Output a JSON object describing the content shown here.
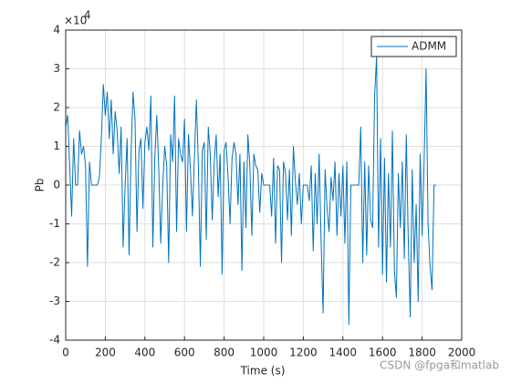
{
  "chart_data": {
    "type": "line",
    "xlabel": "Time (s)",
    "ylabel": "Pb",
    "y_multiplier_base": "×10",
    "y_multiplier_exponent": "4",
    "watermark": "CSDN @fpga和matlab",
    "xlim": [
      0,
      2000
    ],
    "xticks": [
      0,
      200,
      400,
      600,
      800,
      1000,
      1200,
      1400,
      1600,
      1800,
      2000
    ],
    "ylim": [
      -4,
      4
    ],
    "yticks": [
      -4,
      -3,
      -2,
      -1,
      0,
      1,
      2,
      3,
      4
    ],
    "grid": true,
    "legend": "northeast",
    "x": [
      0,
      10,
      20,
      30,
      40,
      50,
      60,
      70,
      80,
      90,
      100,
      110,
      120,
      130,
      140,
      150,
      160,
      170,
      180,
      190,
      200,
      210,
      220,
      230,
      240,
      250,
      260,
      270,
      280,
      290,
      300,
      310,
      320,
      330,
      340,
      350,
      360,
      370,
      380,
      390,
      400,
      410,
      420,
      430,
      440,
      450,
      460,
      470,
      480,
      490,
      500,
      510,
      520,
      530,
      540,
      550,
      560,
      570,
      580,
      590,
      600,
      610,
      620,
      630,
      640,
      650,
      660,
      670,
      680,
      690,
      700,
      710,
      720,
      730,
      740,
      750,
      760,
      770,
      780,
      790,
      800,
      810,
      820,
      830,
      840,
      850,
      860,
      870,
      880,
      890,
      900,
      910,
      920,
      930,
      940,
      950,
      960,
      970,
      980,
      990,
      1000,
      1010,
      1020,
      1030,
      1040,
      1050,
      1060,
      1070,
      1080,
      1090,
      1100,
      1110,
      1120,
      1130,
      1140,
      1150,
      1160,
      1170,
      1180,
      1190,
      1200,
      1210,
      1220,
      1230,
      1240,
      1250,
      1260,
      1270,
      1280,
      1290,
      1300,
      1310,
      1320,
      1330,
      1340,
      1350,
      1360,
      1370,
      1380,
      1390,
      1400,
      1410,
      1420,
      1430,
      1440,
      1450,
      1460,
      1470,
      1480,
      1490,
      1500,
      1510,
      1520,
      1530,
      1540,
      1550,
      1560,
      1570,
      1580,
      1590,
      1600,
      1610,
      1620,
      1630,
      1640,
      1650,
      1660,
      1670,
      1680,
      1690,
      1700,
      1710,
      1720,
      1730,
      1740,
      1750,
      1760,
      1770,
      1780,
      1790,
      1800,
      1810,
      1820,
      1830,
      1840,
      1850,
      1860,
      1870
    ],
    "series": [
      {
        "name": "ADMM",
        "color": "#0072bd",
        "values": [
          1.5,
          1.8,
          0.5,
          -0.8,
          1.2,
          0,
          0,
          1.4,
          0.8,
          1.0,
          0.5,
          -2.1,
          0.6,
          0,
          0,
          0,
          0,
          0.2,
          1.2,
          2.6,
          1.8,
          2.4,
          1.2,
          2.2,
          0.8,
          1.9,
          1.4,
          0.3,
          1.5,
          -1.6,
          0,
          1.2,
          -1.8,
          0.8,
          2.4,
          1.7,
          -1.2,
          0.9,
          1.2,
          -0.6,
          1.1,
          1.5,
          0.9,
          2.3,
          -1.6,
          0.7,
          1.8,
          0.4,
          -1.5,
          0,
          1.0,
          0.5,
          -2.0,
          1.3,
          0.6,
          2.3,
          -1.2,
          1.2,
          0.8,
          0.6,
          1.7,
          -1.2,
          1.3,
          0.4,
          -0.8,
          0.7,
          2.2,
          0.5,
          -2.1,
          0.9,
          1.1,
          -1.4,
          1.5,
          0.8,
          -0.9,
          0.6,
          1.3,
          -0.3,
          0.8,
          -2.3,
          0.9,
          1.1,
          0.2,
          -1.0,
          0.7,
          1.1,
          0.8,
          -0.5,
          0.8,
          -2.2,
          0.6,
          -1.1,
          1.3,
          0.5,
          -1.3,
          0.8,
          0.5,
          0.4,
          -0.7,
          0.3,
          0,
          0,
          0,
          0,
          -0.8,
          0.7,
          -1.5,
          0.5,
          0.4,
          -2.0,
          0.6,
          0.3,
          -0.9,
          0.4,
          -1.3,
          1.0,
          0.1,
          -0.5,
          0.3,
          -1.0,
          0,
          0,
          0,
          -0.4,
          0.5,
          -1.7,
          0.3,
          -1.0,
          0.8,
          -1.5,
          -3.3,
          0.4,
          -0.6,
          -1.2,
          0.2,
          -0.4,
          0.6,
          -1.3,
          0.3,
          -0.8,
          0.5,
          -1.5,
          0.6,
          -3.6,
          0,
          0,
          0,
          0,
          0,
          1.5,
          -2.0,
          0.6,
          -1.8,
          0.5,
          -0.9,
          -1.1,
          2.3,
          3.3,
          -1.6,
          1.2,
          -2.3,
          0.7,
          -2.5,
          0.3,
          -1.6,
          1.4,
          -2.2,
          -2.9,
          0.3,
          -1.1,
          0.6,
          -1.9,
          1.3,
          -1.4,
          -3.4,
          0.4,
          -2.0,
          -0.5,
          -3.0,
          0.8,
          -1.3,
          0.6,
          3.0,
          -1.0,
          -2.1,
          -2.7,
          0,
          0
        ]
      }
    ]
  }
}
